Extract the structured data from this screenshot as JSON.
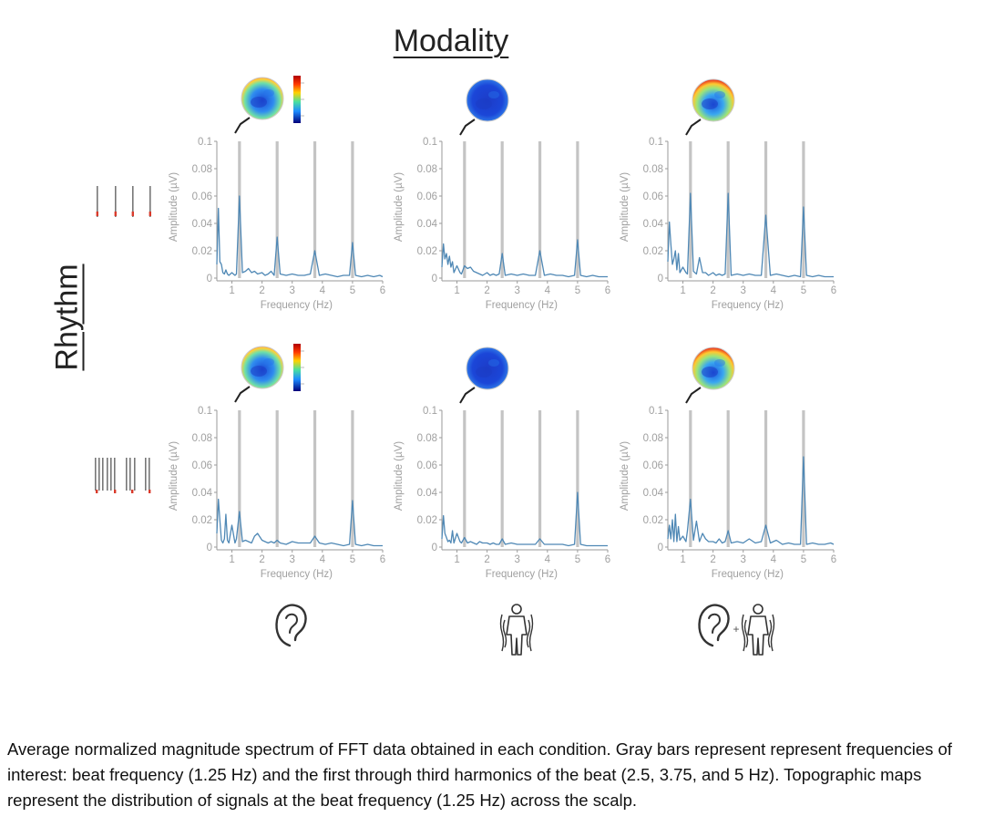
{
  "headings": {
    "modality": "Modality",
    "rhythm": "Rhythm"
  },
  "caption": "Average normalized magnitude spectrum of FFT data obtained in each condition. Gray bars represent represent frequencies of interest: beat frequency (1.25 Hz) and the first through third harmonics of the beat (2.5, 3.75, and 5 Hz). Topographic maps represent the distribution of signals at the beat frequency (1.25 Hz) across the scalp.",
  "colors": {
    "spectrum": "#4f88b5",
    "frequency_bar": "#c4c4c4",
    "axis": "#9a9a9a",
    "tick_label": "#a0a0a0",
    "rhythm_mark": "#d93a2b"
  },
  "icons": [
    "ear-icon",
    "body-vibration-icon",
    "ear-plus-body-icon"
  ],
  "chart_data": [
    {
      "type": "line",
      "row": 1,
      "column": 1,
      "rhythm": "unsyncopated",
      "modality": "auditory",
      "xlabel": "Frequency (Hz)",
      "ylabel": "Amplitude (µV)",
      "xlim": [
        0.5,
        6
      ],
      "ylim": [
        0,
        0.1
      ],
      "xticks": [
        "1",
        "2",
        "3",
        "4",
        "5",
        "6"
      ],
      "yticks": [
        "0",
        "0.02",
        "0.04",
        "0.06",
        "0.08",
        "0.1"
      ],
      "highlight_frequencies": [
        1.25,
        2.5,
        3.75,
        5
      ],
      "x": [
        0.5,
        0.55,
        0.6,
        0.65,
        0.7,
        0.75,
        0.8,
        0.85,
        0.9,
        1.0,
        1.1,
        1.15,
        1.25,
        1.35,
        1.45,
        1.55,
        1.65,
        1.75,
        1.85,
        2.0,
        2.1,
        2.2,
        2.3,
        2.4,
        2.5,
        2.6,
        2.8,
        3.0,
        3.2,
        3.4,
        3.6,
        3.75,
        3.9,
        4.1,
        4.3,
        4.5,
        4.7,
        4.9,
        5.0,
        5.1,
        5.3,
        5.5,
        5.7,
        5.9,
        6.0
      ],
      "y": [
        0.01,
        0.051,
        0.012,
        0.01,
        0.004,
        0.003,
        0.006,
        0.003,
        0.002,
        0.004,
        0.002,
        0.003,
        0.06,
        0.004,
        0.005,
        0.007,
        0.004,
        0.005,
        0.003,
        0.004,
        0.002,
        0.003,
        0.005,
        0.002,
        0.03,
        0.003,
        0.002,
        0.003,
        0.002,
        0.002,
        0.003,
        0.02,
        0.002,
        0.003,
        0.002,
        0.001,
        0.002,
        0.002,
        0.026,
        0.002,
        0.001,
        0.002,
        0.001,
        0.002,
        0.001
      ]
    },
    {
      "type": "line",
      "row": 1,
      "column": 2,
      "rhythm": "unsyncopated",
      "modality": "vibrotactile",
      "xlabel": "Frequency (Hz)",
      "ylabel": "Amplitude (µV)",
      "xlim": [
        0.5,
        6
      ],
      "ylim": [
        0,
        0.1
      ],
      "xticks": [
        "1",
        "2",
        "3",
        "4",
        "5",
        "6"
      ],
      "yticks": [
        "0",
        "0.02",
        "0.04",
        "0.06",
        "0.08",
        "0.1"
      ],
      "highlight_frequencies": [
        1.25,
        2.5,
        3.75,
        5
      ],
      "x": [
        0.5,
        0.55,
        0.6,
        0.65,
        0.7,
        0.75,
        0.8,
        0.85,
        0.9,
        1.0,
        1.1,
        1.15,
        1.25,
        1.35,
        1.45,
        1.55,
        1.65,
        1.75,
        1.85,
        2.0,
        2.1,
        2.2,
        2.3,
        2.4,
        2.5,
        2.6,
        2.8,
        3.0,
        3.2,
        3.4,
        3.6,
        3.75,
        3.9,
        4.1,
        4.3,
        4.5,
        4.7,
        4.9,
        5.0,
        5.1,
        5.3,
        5.5,
        5.7,
        5.9,
        6.0
      ],
      "y": [
        0.008,
        0.025,
        0.014,
        0.018,
        0.01,
        0.016,
        0.008,
        0.012,
        0.004,
        0.009,
        0.004,
        0.003,
        0.009,
        0.007,
        0.008,
        0.005,
        0.004,
        0.003,
        0.002,
        0.004,
        0.002,
        0.003,
        0.002,
        0.003,
        0.018,
        0.002,
        0.003,
        0.002,
        0.003,
        0.002,
        0.002,
        0.02,
        0.002,
        0.003,
        0.002,
        0.002,
        0.001,
        0.002,
        0.028,
        0.002,
        0.001,
        0.002,
        0.001,
        0.001,
        0.001
      ]
    },
    {
      "type": "line",
      "row": 1,
      "column": 3,
      "rhythm": "unsyncopated",
      "modality": "auditory + vibrotactile",
      "xlabel": "Frequency (Hz)",
      "ylabel": "Amplitude (µV)",
      "xlim": [
        0.5,
        6
      ],
      "ylim": [
        0,
        0.1
      ],
      "xticks": [
        "1",
        "2",
        "3",
        "4",
        "5",
        "6"
      ],
      "yticks": [
        "0",
        "0.02",
        "0.04",
        "0.06",
        "0.08",
        "0.1"
      ],
      "highlight_frequencies": [
        1.25,
        2.5,
        3.75,
        5
      ],
      "x": [
        0.5,
        0.55,
        0.6,
        0.65,
        0.7,
        0.75,
        0.8,
        0.85,
        0.9,
        1.0,
        1.1,
        1.15,
        1.25,
        1.35,
        1.45,
        1.55,
        1.65,
        1.75,
        1.85,
        2.0,
        2.1,
        2.2,
        2.3,
        2.4,
        2.5,
        2.6,
        2.8,
        3.0,
        3.2,
        3.4,
        3.6,
        3.75,
        3.9,
        4.1,
        4.3,
        4.5,
        4.7,
        4.9,
        5.0,
        5.1,
        5.3,
        5.5,
        5.7,
        5.9,
        6.0
      ],
      "y": [
        0.012,
        0.041,
        0.025,
        0.01,
        0.014,
        0.02,
        0.006,
        0.018,
        0.004,
        0.008,
        0.004,
        0.003,
        0.062,
        0.005,
        0.003,
        0.015,
        0.004,
        0.004,
        0.002,
        0.004,
        0.002,
        0.003,
        0.002,
        0.003,
        0.062,
        0.002,
        0.003,
        0.002,
        0.003,
        0.002,
        0.002,
        0.046,
        0.002,
        0.003,
        0.002,
        0.001,
        0.002,
        0.001,
        0.052,
        0.002,
        0.001,
        0.002,
        0.001,
        0.001,
        0.001
      ]
    },
    {
      "type": "line",
      "row": 2,
      "column": 1,
      "rhythm": "syncopated",
      "modality": "auditory",
      "xlabel": "Frequency (Hz)",
      "ylabel": "Amplitude (µV)",
      "xlim": [
        0.5,
        6
      ],
      "ylim": [
        0,
        0.1
      ],
      "xticks": [
        "1",
        "2",
        "3",
        "4",
        "5",
        "6"
      ],
      "yticks": [
        "0",
        "0.02",
        "0.04",
        "0.06",
        "0.08",
        "0.1"
      ],
      "highlight_frequencies": [
        1.25,
        2.5,
        3.75,
        5
      ],
      "x": [
        0.5,
        0.55,
        0.6,
        0.65,
        0.7,
        0.75,
        0.8,
        0.85,
        0.9,
        1.0,
        1.1,
        1.15,
        1.25,
        1.35,
        1.45,
        1.55,
        1.65,
        1.75,
        1.85,
        2.0,
        2.1,
        2.2,
        2.3,
        2.4,
        2.5,
        2.6,
        2.8,
        3.0,
        3.2,
        3.4,
        3.6,
        3.75,
        3.9,
        4.1,
        4.3,
        4.5,
        4.7,
        4.9,
        5.0,
        5.1,
        5.3,
        5.5,
        5.7,
        5.9,
        6.0
      ],
      "y": [
        0.01,
        0.035,
        0.02,
        0.005,
        0.003,
        0.006,
        0.024,
        0.005,
        0.003,
        0.016,
        0.003,
        0.006,
        0.026,
        0.004,
        0.005,
        0.004,
        0.003,
        0.008,
        0.01,
        0.005,
        0.004,
        0.003,
        0.004,
        0.003,
        0.005,
        0.003,
        0.002,
        0.004,
        0.003,
        0.003,
        0.003,
        0.008,
        0.003,
        0.002,
        0.003,
        0.002,
        0.001,
        0.002,
        0.034,
        0.002,
        0.001,
        0.002,
        0.001,
        0.001,
        0.001
      ]
    },
    {
      "type": "line",
      "row": 2,
      "column": 2,
      "rhythm": "syncopated",
      "modality": "vibrotactile",
      "xlabel": "Frequency (Hz)",
      "ylabel": "Amplitude (µV)",
      "xlim": [
        0.5,
        6
      ],
      "ylim": [
        0,
        0.1
      ],
      "xticks": [
        "1",
        "2",
        "3",
        "4",
        "5",
        "6"
      ],
      "yticks": [
        "0",
        "0.02",
        "0.04",
        "0.06",
        "0.08",
        "0.1"
      ],
      "highlight_frequencies": [
        1.25,
        2.5,
        3.75,
        5
      ],
      "x": [
        0.5,
        0.55,
        0.6,
        0.65,
        0.7,
        0.75,
        0.8,
        0.85,
        0.9,
        1.0,
        1.1,
        1.15,
        1.25,
        1.35,
        1.45,
        1.55,
        1.65,
        1.75,
        1.85,
        2.0,
        2.1,
        2.2,
        2.3,
        2.4,
        2.5,
        2.6,
        2.8,
        3.0,
        3.2,
        3.4,
        3.6,
        3.75,
        3.9,
        4.1,
        4.3,
        4.5,
        4.7,
        4.9,
        5.0,
        5.1,
        5.3,
        5.5,
        5.7,
        5.9,
        6.0
      ],
      "y": [
        0.006,
        0.023,
        0.01,
        0.007,
        0.004,
        0.005,
        0.003,
        0.012,
        0.003,
        0.01,
        0.004,
        0.003,
        0.007,
        0.003,
        0.004,
        0.003,
        0.002,
        0.004,
        0.003,
        0.003,
        0.002,
        0.003,
        0.002,
        0.002,
        0.006,
        0.002,
        0.003,
        0.002,
        0.002,
        0.002,
        0.002,
        0.006,
        0.002,
        0.002,
        0.002,
        0.002,
        0.001,
        0.002,
        0.04,
        0.002,
        0.001,
        0.001,
        0.001,
        0.001,
        0.001
      ]
    },
    {
      "type": "line",
      "row": 2,
      "column": 3,
      "rhythm": "syncopated",
      "modality": "auditory + vibrotactile",
      "xlabel": "Frequency (Hz)",
      "ylabel": "Amplitude (µV)",
      "xlim": [
        0.5,
        6
      ],
      "ylim": [
        0,
        0.1
      ],
      "xticks": [
        "1",
        "2",
        "3",
        "4",
        "5",
        "6"
      ],
      "yticks": [
        "0",
        "0.02",
        "0.04",
        "0.06",
        "0.08",
        "0.1"
      ],
      "highlight_frequencies": [
        1.25,
        2.5,
        3.75,
        5
      ],
      "x": [
        0.5,
        0.55,
        0.6,
        0.65,
        0.7,
        0.75,
        0.8,
        0.85,
        0.9,
        1.0,
        1.1,
        1.15,
        1.25,
        1.35,
        1.45,
        1.55,
        1.65,
        1.75,
        1.85,
        2.0,
        2.1,
        2.2,
        2.3,
        2.4,
        2.5,
        2.6,
        2.8,
        3.0,
        3.2,
        3.4,
        3.6,
        3.75,
        3.9,
        4.1,
        4.3,
        4.5,
        4.7,
        4.9,
        5.0,
        5.1,
        5.3,
        5.5,
        5.7,
        5.9,
        6.0
      ],
      "y": [
        0.006,
        0.016,
        0.006,
        0.02,
        0.004,
        0.024,
        0.004,
        0.015,
        0.005,
        0.008,
        0.004,
        0.012,
        0.035,
        0.005,
        0.019,
        0.004,
        0.01,
        0.006,
        0.004,
        0.004,
        0.003,
        0.006,
        0.003,
        0.004,
        0.012,
        0.003,
        0.004,
        0.003,
        0.006,
        0.003,
        0.004,
        0.016,
        0.003,
        0.005,
        0.002,
        0.003,
        0.002,
        0.002,
        0.066,
        0.002,
        0.003,
        0.002,
        0.002,
        0.003,
        0.002
      ]
    }
  ]
}
